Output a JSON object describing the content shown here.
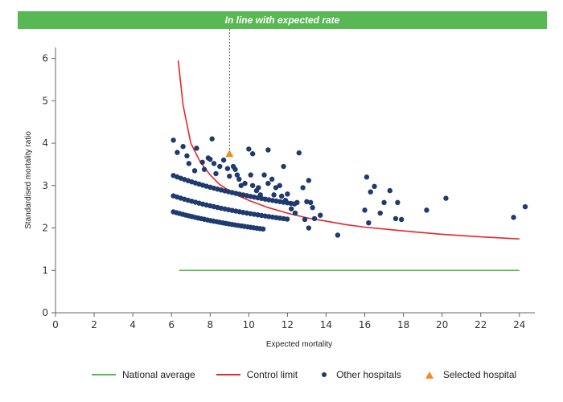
{
  "banner": {
    "text": "In line with expected rate",
    "color": "#58b854"
  },
  "colors": {
    "national": "#58b854",
    "control": "#e4262c",
    "others": "#1f3a6e",
    "selected": "#f08d22"
  },
  "legend": {
    "national": "National average",
    "control": "Control limit",
    "others": "Other hospitals",
    "selected": "Selected hospital"
  },
  "chart_data": {
    "type": "scatter",
    "xlabel": "Expected mortality",
    "ylabel": "Standardised mortality ratio",
    "xlim": [
      0,
      24.8
    ],
    "ylim": [
      0,
      6.2
    ],
    "xticks": [
      0,
      2,
      4,
      6,
      8,
      10,
      12,
      14,
      16,
      18,
      20,
      22,
      24
    ],
    "yticks": [
      0,
      1,
      2,
      3,
      4,
      5,
      6
    ],
    "grid": false,
    "legend_position": "bottom",
    "national_average": {
      "value": 1,
      "x_range": [
        6.4,
        24
      ]
    },
    "control_limit": {
      "x": [
        6.35,
        6.6,
        7.0,
        7.5,
        8.0,
        8.5,
        9.0,
        9.5,
        10.0,
        11.0,
        12.0,
        13.0,
        14.0,
        15.0,
        16.0,
        18.0,
        20.0,
        22.0,
        24.0
      ],
      "y": [
        5.95,
        4.9,
        4.0,
        3.55,
        3.25,
        3.02,
        2.88,
        2.75,
        2.65,
        2.48,
        2.35,
        2.24,
        2.16,
        2.08,
        2.02,
        1.93,
        1.85,
        1.79,
        1.74
      ]
    },
    "selected_hospital": {
      "x": 9.0,
      "y": 3.75
    },
    "selected_marker_line": {
      "x": 9.0,
      "from_y": 3.75,
      "to_banner": true
    },
    "other_hospitals": [
      [
        6.1,
        4.07
      ],
      [
        6.3,
        3.78
      ],
      [
        6.6,
        3.92
      ],
      [
        6.8,
        3.7
      ],
      [
        6.9,
        3.52
      ],
      [
        7.2,
        3.35
      ],
      [
        7.3,
        3.88
      ],
      [
        7.6,
        3.55
      ],
      [
        7.7,
        3.38
      ],
      [
        7.9,
        3.65
      ],
      [
        8.0,
        3.62
      ],
      [
        8.1,
        4.1
      ],
      [
        8.2,
        3.52
      ],
      [
        8.3,
        3.28
      ],
      [
        8.5,
        3.45
      ],
      [
        8.7,
        3.6
      ],
      [
        8.9,
        3.4
      ],
      [
        9.0,
        3.22
      ],
      [
        9.2,
        3.45
      ],
      [
        9.3,
        3.38
      ],
      [
        9.4,
        3.25
      ],
      [
        9.5,
        3.15
      ],
      [
        9.6,
        3.0
      ],
      [
        9.8,
        3.05
      ],
      [
        10.0,
        3.86
      ],
      [
        10.2,
        3.75
      ],
      [
        10.1,
        3.25
      ],
      [
        10.2,
        3.0
      ],
      [
        10.4,
        2.88
      ],
      [
        10.5,
        2.95
      ],
      [
        10.6,
        2.78
      ],
      [
        10.8,
        3.25
      ],
      [
        11.0,
        3.84
      ],
      [
        11.0,
        3.05
      ],
      [
        11.2,
        3.15
      ],
      [
        11.3,
        2.78
      ],
      [
        11.4,
        2.95
      ],
      [
        11.6,
        3.0
      ],
      [
        11.8,
        3.45
      ],
      [
        11.7,
        2.75
      ],
      [
        11.9,
        2.65
      ],
      [
        12.0,
        2.8
      ],
      [
        12.2,
        2.45
      ],
      [
        12.4,
        2.35
      ],
      [
        12.5,
        2.6
      ],
      [
        12.6,
        3.77
      ],
      [
        12.8,
        2.95
      ],
      [
        12.9,
        2.2
      ],
      [
        13.0,
        2.62
      ],
      [
        13.1,
        3.12
      ],
      [
        13.2,
        2.6
      ],
      [
        13.3,
        2.48
      ],
      [
        13.4,
        2.22
      ],
      [
        13.7,
        2.3
      ],
      [
        13.1,
        2.0
      ],
      [
        14.6,
        1.83
      ],
      [
        16.0,
        2.42
      ],
      [
        16.1,
        3.2
      ],
      [
        16.2,
        2.12
      ],
      [
        16.3,
        2.85
      ],
      [
        16.5,
        2.98
      ],
      [
        16.8,
        2.35
      ],
      [
        17.0,
        2.6
      ],
      [
        17.3,
        2.88
      ],
      [
        17.6,
        2.22
      ],
      [
        17.7,
        2.6
      ],
      [
        17.9,
        2.2
      ],
      [
        19.2,
        2.42
      ],
      [
        20.2,
        2.7
      ],
      [
        23.7,
        2.25
      ],
      [
        24.3,
        2.5
      ]
    ],
    "other_hospitals_bands": [
      {
        "base": 2.38,
        "count": 30
      },
      {
        "base": 2.75,
        "count": 32
      },
      {
        "base": 3.22,
        "count": 34
      }
    ]
  }
}
